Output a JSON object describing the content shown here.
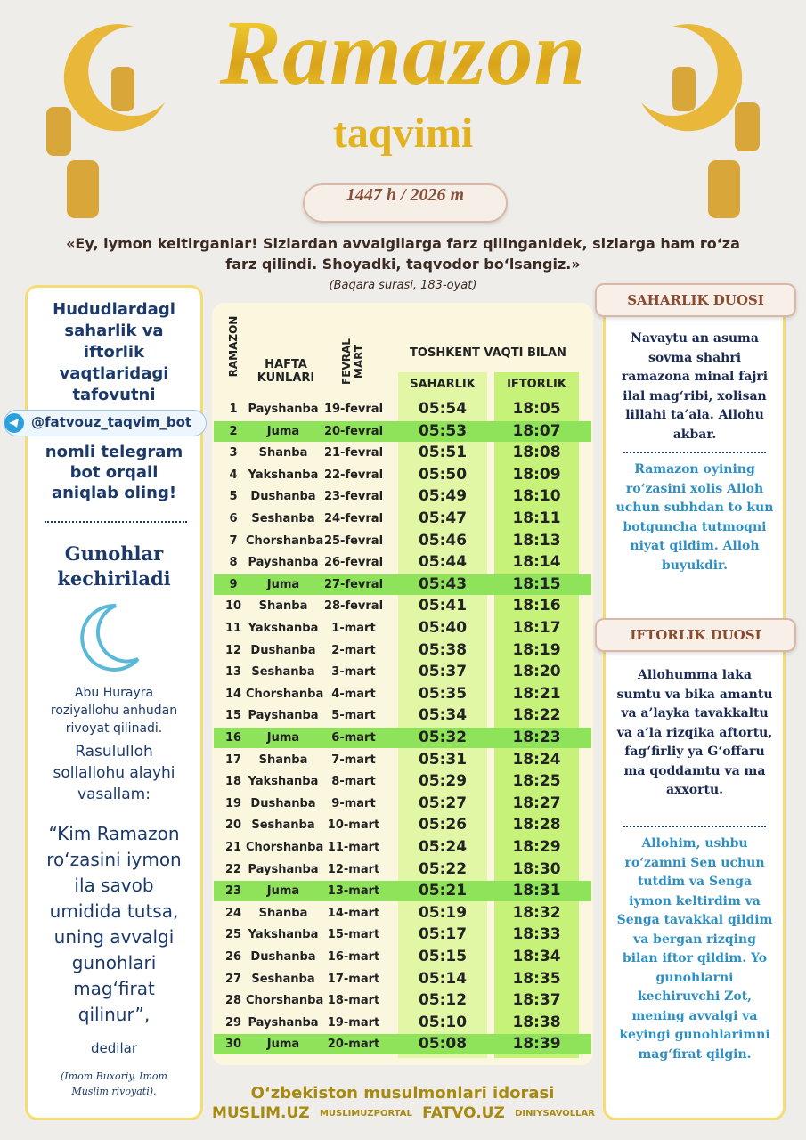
{
  "header": {
    "title": "Ramazon",
    "subtitle": "taqvimi",
    "year": "1447 h / 2026 m",
    "quote": "«Ey, iymon keltirganlar! Sizlardan avvalgilarga farz qilinganidek, sizlarga ham ro‘za farz qilindi. Shoyadki, taqvodor bo‘lsangiz.»",
    "quote_source": "(Baqara surasi, 183-oyat)"
  },
  "left_panel": {
    "intro": "Hududlardagi saharlik va iftorlik vaqtlaridagi tafovutni",
    "telegram": "@fatvouz_taqvim_bot",
    "outro": "nomli telegram bot orqali aniqlab oling!",
    "heading": "Gunohlar kechiriladi",
    "narrator": "Abu Hurayra roziyallohu anhudan rivoyat qilinadi.",
    "prophet": "Rasululloh sollallohu alayhi vasallam:",
    "hadith": "“Kim Ramazon ro‘zasini iymon ila savob umidida tutsa, uning avvalgi gunohlari mag‘firat qilinur”,",
    "said": "dedilar",
    "source": "(Imom Buxoriy, Imom Muslim rivoyati)."
  },
  "table": {
    "col_ramazon": "RAMAZON",
    "col_weekday": "HAFTA KUNLARI",
    "col_date": "FEVRAL MART",
    "col_tashkent": "TOSHKENT VAQTI BILAN",
    "col_saharlik": "SAHARLIK",
    "col_iftorlik": "IFTORLIK",
    "rows": [
      [
        "1",
        "Payshanba",
        "19-fevral",
        "05:54",
        "18:05"
      ],
      [
        "2",
        "Juma",
        "20-fevral",
        "05:53",
        "18:07"
      ],
      [
        "3",
        "Shanba",
        "21-fevral",
        "05:51",
        "18:08"
      ],
      [
        "4",
        "Yakshanba",
        "22-fevral",
        "05:50",
        "18:09"
      ],
      [
        "5",
        "Dushanba",
        "23-fevral",
        "05:49",
        "18:10"
      ],
      [
        "6",
        "Seshanba",
        "24-fevral",
        "05:47",
        "18:11"
      ],
      [
        "7",
        "Chorshanba",
        "25-fevral",
        "05:46",
        "18:13"
      ],
      [
        "8",
        "Payshanba",
        "26-fevral",
        "05:44",
        "18:14"
      ],
      [
        "9",
        "Juma",
        "27-fevral",
        "05:43",
        "18:15"
      ],
      [
        "10",
        "Shanba",
        "28-fevral",
        "05:41",
        "18:16"
      ],
      [
        "11",
        "Yakshanba",
        "1-mart",
        "05:40",
        "18:17"
      ],
      [
        "12",
        "Dushanba",
        "2-mart",
        "05:38",
        "18:19"
      ],
      [
        "13",
        "Seshanba",
        "3-mart",
        "05:37",
        "18:20"
      ],
      [
        "14",
        "Chorshanba",
        "4-mart",
        "05:35",
        "18:21"
      ],
      [
        "15",
        "Payshanba",
        "5-mart",
        "05:34",
        "18:22"
      ],
      [
        "16",
        "Juma",
        "6-mart",
        "05:32",
        "18:23"
      ],
      [
        "17",
        "Shanba",
        "7-mart",
        "05:31",
        "18:24"
      ],
      [
        "18",
        "Yakshanba",
        "8-mart",
        "05:29",
        "18:25"
      ],
      [
        "19",
        "Dushanba",
        "9-mart",
        "05:27",
        "18:27"
      ],
      [
        "20",
        "Seshanba",
        "10-mart",
        "05:26",
        "18:28"
      ],
      [
        "21",
        "Chorshanba",
        "11-mart",
        "05:24",
        "18:29"
      ],
      [
        "22",
        "Payshanba",
        "12-mart",
        "05:22",
        "18:30"
      ],
      [
        "23",
        "Juma",
        "13-mart",
        "05:21",
        "18:31"
      ],
      [
        "24",
        "Shanba",
        "14-mart",
        "05:19",
        "18:32"
      ],
      [
        "25",
        "Yakshanba",
        "15-mart",
        "05:17",
        "18:33"
      ],
      [
        "26",
        "Dushanba",
        "16-mart",
        "05:15",
        "18:34"
      ],
      [
        "27",
        "Seshanba",
        "17-mart",
        "05:14",
        "18:35"
      ],
      [
        "28",
        "Chorshanba",
        "18-mart",
        "05:12",
        "18:37"
      ],
      [
        "29",
        "Payshanba",
        "19-mart",
        "05:10",
        "18:38"
      ],
      [
        "30",
        "Juma",
        "20-mart",
        "05:08",
        "18:39"
      ]
    ]
  },
  "right_panel": {
    "saharlik_title": "SAHARLIK DUOSI",
    "saharlik_arabic": "Navaytu an asuma sovma shahri ramazona minal fajri ilal mag‘ribi, xolisan lillahi ta’ala. Allohu akbar.",
    "saharlik_meaning": "Ramazon oyining ro‘zasini xolis Alloh uchun subhdan to kun botguncha tutmoqni niyat qildim. Alloh buyukdir.",
    "iftorlik_title": "IFTORLIK DUOSI",
    "iftorlik_arabic": "Allohumma laka sumtu va bika amantu va a’layka tavakkaltu va a’la rizqika aftortu, fag‘firliy ya G‘offaru ma qoddamtu va ma axxortu.",
    "iftorlik_meaning": "Allohim, ushbu ro‘zamni Sen uchun tutdim va Senga iymon keltirdim va Senga tavakkal qildim va bergan rizqing bilan iftor qildim. Yo gunohlarni kechiruvchi Zot, mening avvalgi va keyingi gunohlarimni mag‘firat qilgin."
  },
  "footer": {
    "org": "O‘zbekiston musulmonlari idorasi",
    "site1": "MUSLIM.UZ",
    "channel1": "MUSLIMUZPORTAL",
    "site2": "FATVO.UZ",
    "channel2": "DINIYSAVOLLAR"
  }
}
